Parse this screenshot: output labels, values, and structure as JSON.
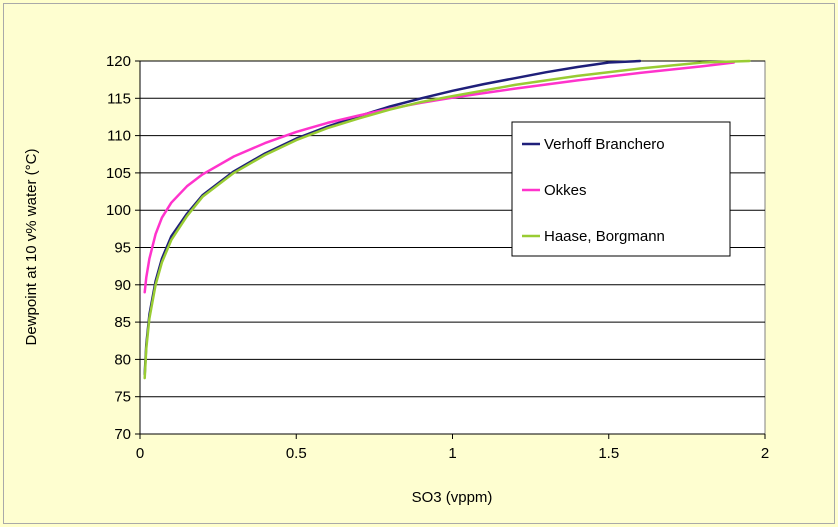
{
  "chart_data": {
    "type": "line",
    "title": "",
    "xlabel": "SO3  (vppm)",
    "ylabel": "Dewpoint at 10 v% water (°C)",
    "xlim": [
      0,
      2
    ],
    "ylim": [
      70,
      120
    ],
    "xticks": [
      "0",
      "0.5",
      "1",
      "1.5",
      "2"
    ],
    "xtick_values": [
      0,
      0.5,
      1,
      1.5,
      2
    ],
    "yticks": [
      "70",
      "75",
      "80",
      "85",
      "90",
      "95",
      "100",
      "105",
      "110",
      "115",
      "120"
    ],
    "ytick_values": [
      70,
      75,
      80,
      85,
      90,
      95,
      100,
      105,
      110,
      115,
      120
    ],
    "grid": "horizontal",
    "legend_position": "right",
    "background_color": "#ffffcc",
    "plot_background_color": "#ffffff",
    "series": [
      {
        "name": "Verhoff Branchero",
        "color": "#1f1f7a",
        "x": [
          0.015,
          0.02,
          0.03,
          0.05,
          0.07,
          0.1,
          0.15,
          0.2,
          0.3,
          0.4,
          0.5,
          0.6,
          0.7,
          0.8,
          0.9,
          1.0,
          1.1,
          1.2,
          1.3,
          1.4,
          1.5,
          1.6
        ],
        "y": [
          78.0,
          82.0,
          86.0,
          90.5,
          93.5,
          96.5,
          99.5,
          102.0,
          105.2,
          107.6,
          109.6,
          111.2,
          112.6,
          113.9,
          115.0,
          116.0,
          116.9,
          117.7,
          118.5,
          119.2,
          119.8,
          120.0
        ]
      },
      {
        "name": "Okkes",
        "color": "#ff33cc",
        "x": [
          0.015,
          0.02,
          0.03,
          0.05,
          0.07,
          0.1,
          0.15,
          0.2,
          0.3,
          0.4,
          0.5,
          0.6,
          0.7,
          0.8,
          0.9,
          1.0,
          1.2,
          1.4,
          1.6,
          1.8,
          1.9
        ],
        "y": [
          89.0,
          91.0,
          93.5,
          96.8,
          99.0,
          101.0,
          103.2,
          104.8,
          107.2,
          109.0,
          110.5,
          111.7,
          112.7,
          113.6,
          114.4,
          115.1,
          116.3,
          117.4,
          118.4,
          119.3,
          119.8
        ]
      },
      {
        "name": "Haase, Borgmann",
        "color": "#99cc33",
        "x": [
          0.015,
          0.02,
          0.03,
          0.05,
          0.07,
          0.1,
          0.15,
          0.2,
          0.3,
          0.4,
          0.5,
          0.6,
          0.7,
          0.8,
          0.9,
          1.0,
          1.2,
          1.4,
          1.6,
          1.8,
          1.95
        ],
        "y": [
          77.5,
          81.5,
          85.5,
          90.0,
          93.0,
          96.0,
          99.2,
          101.8,
          105.0,
          107.4,
          109.4,
          111.0,
          112.3,
          113.5,
          114.5,
          115.3,
          116.8,
          118.0,
          119.0,
          119.8,
          120.0
        ]
      }
    ]
  }
}
